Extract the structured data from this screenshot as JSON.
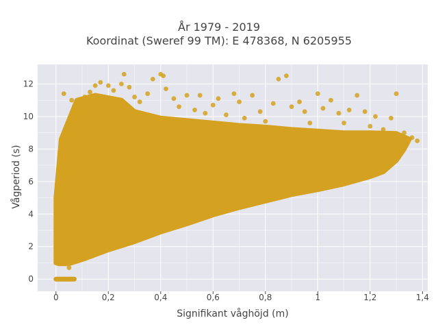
{
  "chart_data": {
    "type": "scatter",
    "title_lines": [
      "År 1979 - 2019",
      "Koordinat (Sweref 99 TM): E 478368, N 6205955"
    ],
    "xlabel": "Signifikant våghöjd (m)",
    "ylabel": "Vågperiod (s)",
    "xlim": [
      -0.07,
      1.42
    ],
    "ylim": [
      -0.75,
      13.2
    ],
    "x_ticks": [
      {
        "value": 0,
        "label": "0"
      },
      {
        "value": 0.2,
        "label": "0,2"
      },
      {
        "value": 0.4,
        "label": "0,4"
      },
      {
        "value": 0.6,
        "label": "0,6"
      },
      {
        "value": 0.8,
        "label": "0,8"
      },
      {
        "value": 1.0,
        "label": "1"
      },
      {
        "value": 1.2,
        "label": "1,2"
      },
      {
        "value": 1.4,
        "label": "1,4"
      }
    ],
    "y_ticks": [
      {
        "value": 0,
        "label": "0"
      },
      {
        "value": 2,
        "label": "2"
      },
      {
        "value": 4,
        "label": "4"
      },
      {
        "value": 6,
        "label": "6"
      },
      {
        "value": 8,
        "label": "8"
      },
      {
        "value": 10,
        "label": "10"
      },
      {
        "value": 12,
        "label": "12"
      }
    ],
    "grid": true,
    "legend": "none",
    "marker_color": "#d4a220",
    "background_color": "#e5e5ee",
    "grid_color": "#ffffff",
    "point_cloud": {
      "body_polygon": [
        [
          0.0,
          1.0
        ],
        [
          0.01,
          0.95
        ],
        [
          0.05,
          0.95
        ],
        [
          0.1,
          1.2
        ],
        [
          0.2,
          1.8
        ],
        [
          0.3,
          2.3
        ],
        [
          0.4,
          2.9
        ],
        [
          0.5,
          3.4
        ],
        [
          0.6,
          3.95
        ],
        [
          0.7,
          4.4
        ],
        [
          0.8,
          4.8
        ],
        [
          0.9,
          5.2
        ],
        [
          1.0,
          5.5
        ],
        [
          1.1,
          5.85
        ],
        [
          1.2,
          6.3
        ],
        [
          1.25,
          6.6
        ],
        [
          1.3,
          7.3
        ],
        [
          1.33,
          8.0
        ],
        [
          1.35,
          8.6
        ],
        [
          1.3,
          8.95
        ],
        [
          1.2,
          9.0
        ],
        [
          1.1,
          9.0
        ],
        [
          1.0,
          9.1
        ],
        [
          0.9,
          9.2
        ],
        [
          0.8,
          9.35
        ],
        [
          0.7,
          9.45
        ],
        [
          0.6,
          9.6
        ],
        [
          0.5,
          9.75
        ],
        [
          0.4,
          9.9
        ],
        [
          0.3,
          10.3
        ],
        [
          0.25,
          11.0
        ],
        [
          0.15,
          11.3
        ],
        [
          0.08,
          11.0
        ],
        [
          0.02,
          8.6
        ],
        [
          0.0,
          5.0
        ]
      ],
      "zero_period_band": {
        "x_from": 0.0,
        "x_to": 0.07,
        "y": 0
      },
      "scattered_points": [
        [
          0.07,
          9.5
        ],
        [
          0.08,
          10.3
        ],
        [
          0.1,
          10.8
        ],
        [
          0.11,
          11.2
        ],
        [
          0.13,
          11.5
        ],
        [
          0.15,
          11.9
        ],
        [
          0.17,
          12.1
        ],
        [
          0.2,
          11.9
        ],
        [
          0.22,
          11.6
        ],
        [
          0.25,
          12.0
        ],
        [
          0.26,
          12.6
        ],
        [
          0.28,
          11.8
        ],
        [
          0.3,
          11.2
        ],
        [
          0.32,
          10.9
        ],
        [
          0.35,
          11.4
        ],
        [
          0.37,
          12.3
        ],
        [
          0.4,
          12.6
        ],
        [
          0.41,
          12.5
        ],
        [
          0.42,
          11.7
        ],
        [
          0.45,
          11.1
        ],
        [
          0.47,
          10.6
        ],
        [
          0.5,
          11.3
        ],
        [
          0.53,
          10.4
        ],
        [
          0.55,
          11.3
        ],
        [
          0.57,
          10.2
        ],
        [
          0.6,
          10.7
        ],
        [
          0.62,
          11.1
        ],
        [
          0.65,
          10.1
        ],
        [
          0.68,
          11.4
        ],
        [
          0.7,
          10.9
        ],
        [
          0.72,
          9.9
        ],
        [
          0.75,
          11.3
        ],
        [
          0.78,
          10.3
        ],
        [
          0.8,
          9.7
        ],
        [
          0.83,
          10.8
        ],
        [
          0.85,
          12.3
        ],
        [
          0.88,
          12.5
        ],
        [
          0.9,
          10.6
        ],
        [
          0.93,
          10.9
        ],
        [
          0.95,
          10.3
        ],
        [
          0.97,
          9.6
        ],
        [
          1.0,
          11.4
        ],
        [
          1.02,
          10.5
        ],
        [
          1.05,
          11.0
        ],
        [
          1.08,
          10.2
        ],
        [
          1.1,
          9.6
        ],
        [
          1.12,
          10.4
        ],
        [
          1.15,
          11.3
        ],
        [
          1.18,
          10.3
        ],
        [
          1.2,
          9.4
        ],
        [
          1.22,
          10.0
        ],
        [
          1.25,
          9.2
        ],
        [
          1.28,
          9.9
        ],
        [
          1.3,
          11.4
        ],
        [
          1.33,
          9.0
        ],
        [
          1.36,
          8.7
        ],
        [
          1.38,
          8.5
        ],
        [
          0.05,
          0.7
        ],
        [
          0.03,
          11.4
        ],
        [
          0.06,
          11.0
        ]
      ]
    }
  }
}
